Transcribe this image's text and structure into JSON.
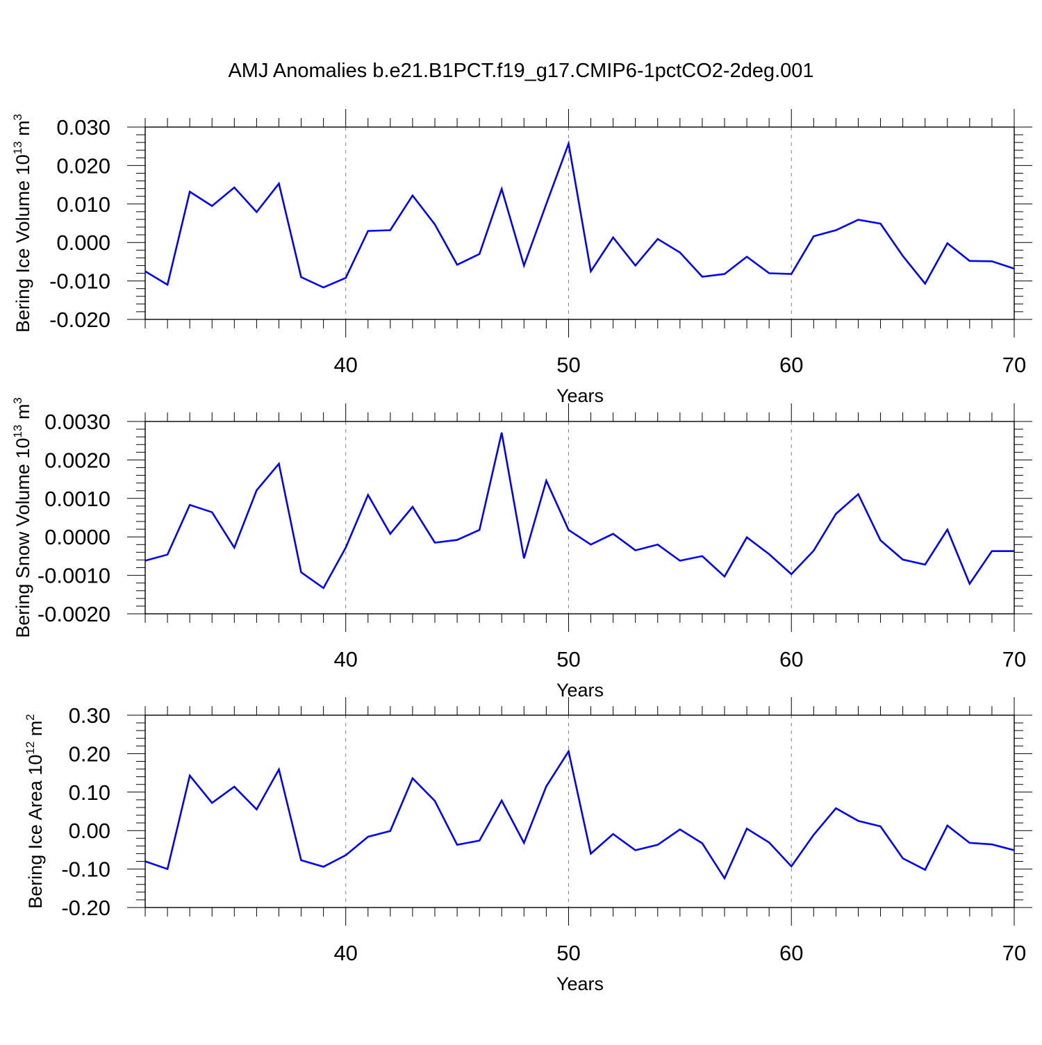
{
  "figure": {
    "title": "AMJ Anomalies b.e21.B1PCT.f19_g17.CMIP6-1pctCO2-2deg.001"
  },
  "chart_data": [
    {
      "type": "line",
      "ylabel": {
        "text": "Bering Ice Volume 10",
        "sup": "13",
        "unit": " m",
        "unit_sup": "3"
      },
      "xlabel": "Years",
      "xlim": [
        31,
        70
      ],
      "ylim": [
        -0.02,
        0.03
      ],
      "xticks": [
        40,
        50,
        60,
        70
      ],
      "yticks": [
        "-0.020",
        "-0.010",
        "0.000",
        "0.010",
        "0.020",
        "0.030"
      ],
      "ytick_values": [
        -0.02,
        -0.01,
        0,
        0.01,
        0.02,
        0.03
      ],
      "grid_x": [
        40,
        50,
        60
      ],
      "line_color": "#0000ff",
      "x": [
        31,
        32,
        33,
        34,
        35,
        36,
        37,
        38,
        39,
        40,
        41,
        42,
        43,
        44,
        45,
        46,
        47,
        48,
        49,
        50,
        51,
        52,
        53,
        54,
        55,
        56,
        57,
        58,
        59,
        60,
        61,
        62,
        63,
        64,
        65,
        66,
        67,
        68,
        69,
        70
      ],
      "values": [
        -0.0075,
        -0.011,
        0.0132,
        0.0095,
        0.0143,
        0.0079,
        0.0153,
        -0.009,
        -0.0117,
        -0.0092,
        0.003,
        0.0032,
        0.0122,
        0.0047,
        -0.0058,
        -0.003,
        0.0139,
        -0.006,
        0.01,
        0.0257,
        -0.0075,
        0.0013,
        -0.006,
        0.0009,
        -0.0026,
        -0.0089,
        -0.0082,
        -0.0037,
        -0.008,
        -0.0082,
        0.0016,
        0.0032,
        0.0059,
        0.0049,
        -0.0035,
        -0.0107,
        -0.0002,
        -0.0048,
        -0.0049,
        -0.0068
      ]
    },
    {
      "type": "line",
      "ylabel": {
        "text": "Bering Snow Volume 10",
        "sup": "13",
        "unit": " m",
        "unit_sup": "3"
      },
      "xlabel": "Years",
      "xlim": [
        31,
        70
      ],
      "ylim": [
        -0.002,
        0.003
      ],
      "xticks": [
        40,
        50,
        60,
        70
      ],
      "yticks": [
        "-0.0020",
        "-0.0010",
        "0.0000",
        "0.0010",
        "0.0020",
        "0.0030"
      ],
      "ytick_values": [
        -0.002,
        -0.001,
        0,
        0.001,
        0.002,
        0.003
      ],
      "grid_x": [
        40,
        50,
        60
      ],
      "line_color": "#0000ff",
      "x": [
        31,
        32,
        33,
        34,
        35,
        36,
        37,
        38,
        39,
        40,
        41,
        42,
        43,
        44,
        45,
        46,
        47,
        48,
        49,
        50,
        51,
        52,
        53,
        54,
        55,
        56,
        57,
        58,
        59,
        60,
        61,
        62,
        63,
        64,
        65,
        66,
        67,
        68,
        69,
        70
      ],
      "values": [
        -0.00062,
        -0.00046,
        0.00083,
        0.00064,
        -0.00028,
        0.00121,
        0.0019,
        -0.00092,
        -0.00133,
        -0.00028,
        0.00109,
        8e-05,
        0.00078,
        -0.00015,
        -8e-05,
        0.00018,
        0.00271,
        -0.00056,
        0.00146,
        0.00018,
        -0.0002,
        8e-05,
        -0.00035,
        -0.0002,
        -0.00062,
        -0.0005,
        -0.00103,
        -1e-05,
        -0.00045,
        -0.00097,
        -0.00036,
        0.0006,
        0.00111,
        -9e-05,
        -0.00059,
        -0.00072,
        0.00019,
        -0.00122,
        -0.00037,
        -0.00037
      ]
    },
    {
      "type": "line",
      "ylabel": {
        "text": "Bering Ice Area 10",
        "sup": "12",
        "unit": " m",
        "unit_sup": "2"
      },
      "xlabel": "Years",
      "xlim": [
        31,
        70
      ],
      "ylim": [
        -0.2,
        0.3
      ],
      "xticks": [
        40,
        50,
        60,
        70
      ],
      "yticks": [
        "-0.20",
        "-0.10",
        "0.00",
        "0.10",
        "0.20",
        "0.30"
      ],
      "ytick_values": [
        -0.2,
        -0.1,
        0,
        0.1,
        0.2,
        0.3
      ],
      "grid_x": [
        40,
        50,
        60
      ],
      "line_color": "#0000ff",
      "x": [
        31,
        32,
        33,
        34,
        35,
        36,
        37,
        38,
        39,
        40,
        41,
        42,
        43,
        44,
        45,
        46,
        47,
        48,
        49,
        50,
        51,
        52,
        53,
        54,
        55,
        56,
        57,
        58,
        59,
        60,
        61,
        62,
        63,
        64,
        65,
        66,
        67,
        68,
        69,
        70
      ],
      "values": [
        -0.08,
        -0.1,
        0.143,
        0.072,
        0.114,
        0.055,
        0.159,
        -0.077,
        -0.094,
        -0.064,
        -0.016,
        -0.001,
        0.136,
        0.077,
        -0.037,
        -0.026,
        0.078,
        -0.032,
        0.115,
        0.206,
        -0.06,
        -0.009,
        -0.051,
        -0.037,
        0.003,
        -0.033,
        -0.124,
        0.005,
        -0.031,
        -0.093,
        -0.011,
        0.058,
        0.025,
        0.011,
        -0.072,
        -0.102,
        0.013,
        -0.032,
        -0.036,
        -0.051
      ]
    }
  ]
}
